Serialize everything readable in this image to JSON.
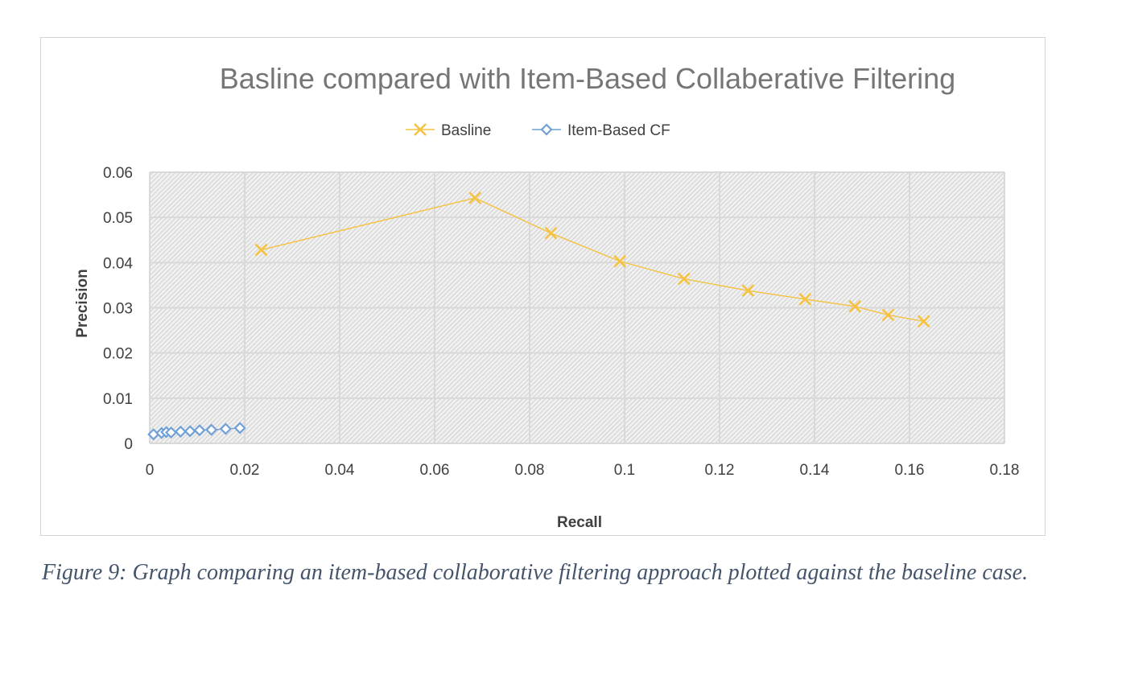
{
  "chart_data": {
    "type": "line",
    "title": "Basline compared with Item-Based Collaberative Filtering",
    "xlabel": "Recall",
    "ylabel": "Precision",
    "xlim": [
      0,
      0.18
    ],
    "ylim": [
      0,
      0.06
    ],
    "x_ticks": [
      "0",
      "0.02",
      "0.04",
      "0.06",
      "0.08",
      "0.1",
      "0.12",
      "0.14",
      "0.16",
      "0.18"
    ],
    "y_ticks": [
      "0",
      "0.01",
      "0.02",
      "0.03",
      "0.04",
      "0.05",
      "0.06"
    ],
    "grid": true,
    "legend_position": "top",
    "series": [
      {
        "name": "Basline",
        "color": "#f5c242",
        "marker": "x-marker",
        "x": [
          0.0235,
          0.0685,
          0.0845,
          0.099,
          0.1125,
          0.126,
          0.138,
          0.1485,
          0.1555,
          0.163
        ],
        "y": [
          0.0428,
          0.0543,
          0.0465,
          0.0403,
          0.0364,
          0.0338,
          0.0319,
          0.0303,
          0.0284,
          0.027
        ]
      },
      {
        "name": "Item-Based CF",
        "color": "#6fa0d6",
        "marker": "diamond-marker",
        "x": [
          0.0008,
          0.0025,
          0.0035,
          0.0045,
          0.0065,
          0.0085,
          0.0105,
          0.013,
          0.016,
          0.019
        ],
        "y": [
          0.002,
          0.0023,
          0.0025,
          0.0024,
          0.0026,
          0.0027,
          0.0029,
          0.003,
          0.0032,
          0.0034
        ]
      }
    ]
  },
  "caption": "Figure 9: Graph comparing an item-based collaborative filtering approach plotted against the baseline case."
}
